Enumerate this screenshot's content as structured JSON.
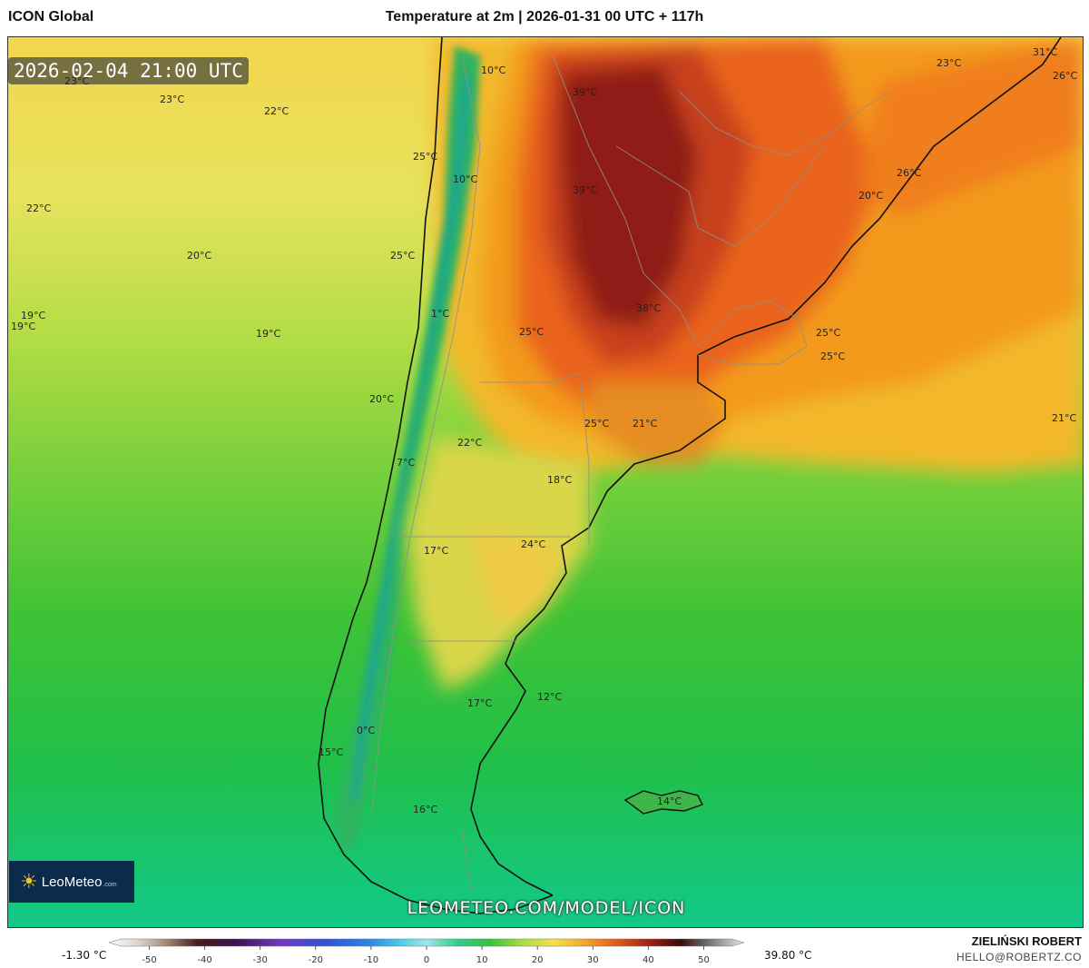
{
  "header": {
    "model": "ICON Global",
    "title": "Temperature at 2m | 2026-01-31 00 UTC + 117h"
  },
  "map": {
    "valid_time": "2026-02-04 21:00 UTC",
    "logo_text": "LeoMeteo",
    "logo_domain": ".com",
    "logo_icon": "sun-icon",
    "url": "LEOMETEO.COM/MODEL/ICON",
    "labels": [
      "10°C",
      "23°C",
      "23°C",
      "22°C",
      "25°C",
      "10°C",
      "22°C",
      "20°C",
      "25°C",
      "19°C",
      "19°C",
      "19°C",
      "1°C",
      "20°C",
      "7°C",
      "22°C",
      "39°C",
      "39°C",
      "38°C",
      "25°C",
      "25°C",
      "21°C",
      "18°C",
      "24°C",
      "17°C",
      "17°C",
      "12°C",
      "0°C",
      "15°C",
      "16°C",
      "14°C",
      "23°C",
      "31°C",
      "26°C",
      "26°C",
      "20°C",
      "25°C",
      "25°C",
      "21°C"
    ]
  },
  "colorbar": {
    "min_label": "-1.30 °C",
    "max_label": "39.80 °C",
    "ticks": [
      "-50",
      "-40",
      "-30",
      "-20",
      "-10",
      "0",
      "10",
      "20",
      "30",
      "40",
      "50"
    ],
    "tick_values": [
      -50,
      -40,
      -30,
      -20,
      -10,
      0,
      10,
      20,
      30,
      40,
      50
    ],
    "range": [
      -55,
      55
    ]
  },
  "footer": {
    "author": "ZIELIŃSKI ROBERT",
    "email": "HELLO@ROBERTZ.CO"
  }
}
